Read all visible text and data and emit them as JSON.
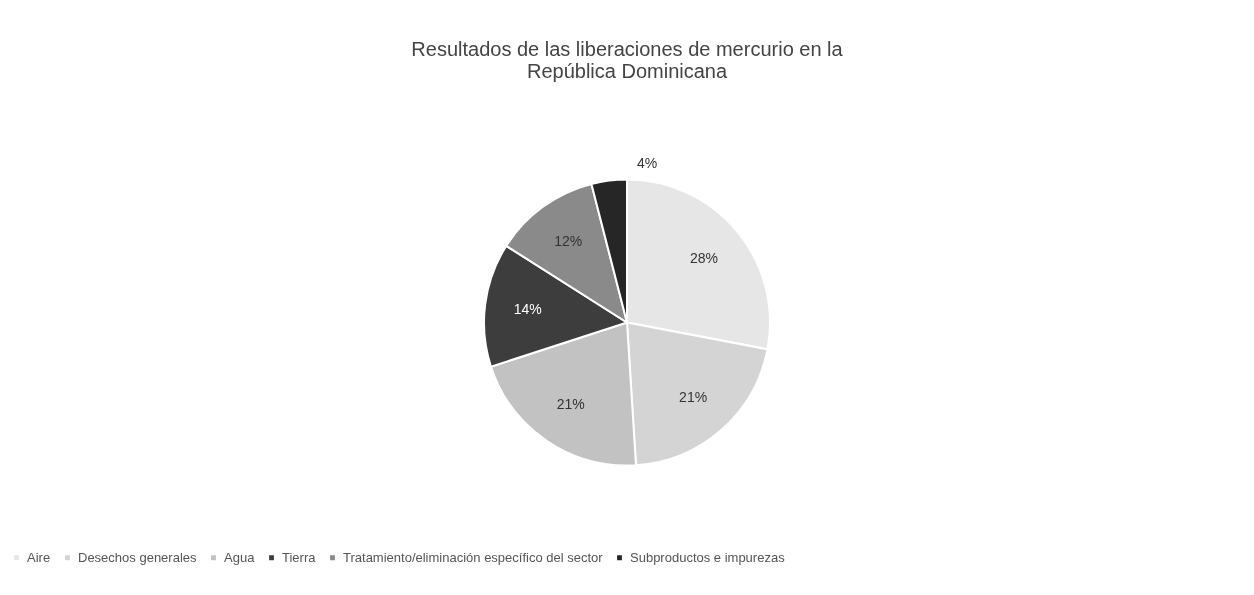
{
  "chart_data": {
    "type": "pie",
    "title": "Resultados de las liberaciones de mercurio en la República Dominicana",
    "categories": [
      "Aire",
      "Desechos generales",
      "Agua",
      "Tierra",
      "Tratamiento/eliminación específico del sector",
      "Subproductos e impurezas"
    ],
    "values": [
      28,
      21,
      21,
      14,
      12,
      4
    ],
    "colors": [
      "#e6e6e6",
      "#d4d4d4",
      "#c2c2c2",
      "#3d3d3d",
      "#8a8a8a",
      "#262626"
    ],
    "value_labels": [
      "28%",
      "21%",
      "21%",
      "14%",
      "12%",
      "4%"
    ],
    "legend": "bottom"
  }
}
